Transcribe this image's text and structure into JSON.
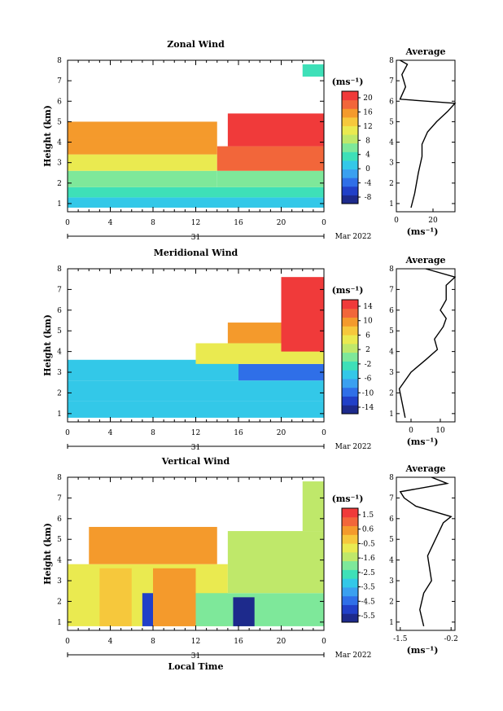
{
  "chart_data": [
    {
      "type": "heatmap",
      "title": "Zonal Wind",
      "ylabel": "Height (km)",
      "unit_label": "(ms⁻¹)",
      "x_ticks": [
        "0",
        "4",
        "8",
        "12",
        "16",
        "20",
        "0"
      ],
      "xlim": [
        0,
        24
      ],
      "y_ticks": [
        "1",
        "2",
        "3",
        "4",
        "5",
        "6",
        "7",
        "8"
      ],
      "ylim": [
        0.6,
        8
      ],
      "date_label": "31",
      "month_label": "Mar 2022",
      "colorbar_ticks": [
        "20",
        "16",
        "12",
        "8",
        "4",
        "0",
        "-4",
        "-8"
      ],
      "colorbar_range": [
        -10,
        22
      ],
      "regions": [
        {
          "x": [
            0,
            24
          ],
          "y": [
            0.8,
            1.3
          ],
          "v": 1
        },
        {
          "x": [
            0,
            24
          ],
          "y": [
            1.3,
            1.8
          ],
          "v": 3
        },
        {
          "x": [
            0,
            14
          ],
          "y": [
            1.8,
            2.6
          ],
          "v": 7
        },
        {
          "x": [
            14,
            24
          ],
          "y": [
            1.8,
            2.6
          ],
          "v": 5
        },
        {
          "x": [
            0,
            14
          ],
          "y": [
            2.6,
            3.4
          ],
          "v": 12
        },
        {
          "x": [
            14,
            24
          ],
          "y": [
            2.6,
            3.8
          ],
          "v": 19
        },
        {
          "x": [
            0,
            14
          ],
          "y": [
            3.4,
            4.2
          ],
          "v": 15
        },
        {
          "x": [
            0,
            14
          ],
          "y": [
            4.2,
            5.0
          ],
          "v": 17
        },
        {
          "x": [
            15,
            24
          ],
          "y": [
            3.8,
            5.4
          ],
          "v": 22
        },
        {
          "x": [
            22,
            24
          ],
          "y": [
            7.2,
            7.8
          ],
          "v": 4
        }
      ],
      "average": {
        "title": "Average",
        "xlabel": "(ms⁻¹)",
        "x_ticks": [
          "0",
          "20"
        ],
        "xlim": [
          0,
          32
        ],
        "profile": [
          [
            8,
            0.8
          ],
          [
            10,
            1.5
          ],
          [
            12,
            2.5
          ],
          [
            14,
            3.3
          ],
          [
            14,
            3.9
          ],
          [
            17,
            4.5
          ],
          [
            22,
            5.0
          ],
          [
            28,
            5.5
          ],
          [
            32,
            5.9
          ],
          [
            2,
            6.1
          ],
          [
            5,
            6.7
          ],
          [
            3,
            7.3
          ],
          [
            6,
            7.8
          ],
          [
            2,
            8.0
          ]
        ]
      }
    },
    {
      "type": "heatmap",
      "title": "Meridional Wind",
      "ylabel": "Height (km)",
      "unit_label": "(ms⁻¹)",
      "x_ticks": [
        "0",
        "4",
        "8",
        "12",
        "16",
        "20",
        "0"
      ],
      "xlim": [
        0,
        24
      ],
      "y_ticks": [
        "1",
        "2",
        "3",
        "4",
        "5",
        "6",
        "7",
        "8"
      ],
      "ylim": [
        0.6,
        8
      ],
      "date_label": "31",
      "month_label": "Mar 2022",
      "colorbar_ticks": [
        "14",
        "10",
        "6",
        "2",
        "-2",
        "-6",
        "-10",
        "-14"
      ],
      "colorbar_range": [
        -16,
        16
      ],
      "regions": [
        {
          "x": [
            0,
            24
          ],
          "y": [
            0.8,
            1.6
          ],
          "v": -4
        },
        {
          "x": [
            0,
            24
          ],
          "y": [
            1.6,
            2.6
          ],
          "v": -6
        },
        {
          "x": [
            0,
            16
          ],
          "y": [
            2.6,
            3.6
          ],
          "v": -4
        },
        {
          "x": [
            16,
            24
          ],
          "y": [
            2.6,
            3.4
          ],
          "v": -9
        },
        {
          "x": [
            12,
            24
          ],
          "y": [
            3.4,
            4.4
          ],
          "v": 5
        },
        {
          "x": [
            15,
            24
          ],
          "y": [
            4.4,
            5.4
          ],
          "v": 9
        },
        {
          "x": [
            20,
            24
          ],
          "y": [
            4.0,
            7.6
          ],
          "v": 15
        }
      ],
      "average": {
        "title": "Average",
        "xlabel": "(ms⁻¹)",
        "x_ticks": [
          "0",
          "10"
        ],
        "xlim": [
          -5,
          15
        ],
        "profile": [
          [
            -2,
            0.8
          ],
          [
            -3,
            1.5
          ],
          [
            -4,
            2.2
          ],
          [
            0,
            3.0
          ],
          [
            5,
            3.6
          ],
          [
            9,
            4.1
          ],
          [
            8,
            4.6
          ],
          [
            11,
            5.2
          ],
          [
            12,
            5.6
          ],
          [
            10,
            6.0
          ],
          [
            12,
            6.5
          ],
          [
            12,
            7.2
          ],
          [
            15,
            7.6
          ],
          [
            5,
            8.0
          ]
        ]
      }
    },
    {
      "type": "heatmap",
      "title": "Vertical Wind",
      "ylabel": "Height (km)",
      "xlabel": "Local Time",
      "unit_label": "(ms⁻¹)",
      "x_ticks": [
        "0",
        "4",
        "8",
        "12",
        "16",
        "20",
        "0"
      ],
      "xlim": [
        0,
        24
      ],
      "y_ticks": [
        "1",
        "2",
        "3",
        "4",
        "5",
        "6",
        "7",
        "8"
      ],
      "ylim": [
        0.6,
        8
      ],
      "date_label": "31",
      "month_label": "Mar 2022",
      "colorbar_ticks": [
        "1.5",
        "0.6",
        "-0.5",
        "-1.6",
        "-2.5",
        "-3.5",
        "-4.5",
        "-5.5"
      ],
      "colorbar_range": [
        -6,
        2
      ],
      "regions": [
        {
          "x": [
            0,
            15
          ],
          "y": [
            0.8,
            3.8
          ],
          "v": -0.5
        },
        {
          "x": [
            3,
            6
          ],
          "y": [
            0.8,
            3.6
          ],
          "v": 0
        },
        {
          "x": [
            7,
            8
          ],
          "y": [
            0.8,
            2.4
          ],
          "v": -5.0
        },
        {
          "x": [
            8,
            12
          ],
          "y": [
            0.8,
            3.6
          ],
          "v": 0.2
        },
        {
          "x": [
            12,
            24
          ],
          "y": [
            0.8,
            2.4
          ],
          "v": -1.8
        },
        {
          "x": [
            15,
            24
          ],
          "y": [
            2.4,
            5.4
          ],
          "v": -1.4
        },
        {
          "x": [
            15.5,
            17.5
          ],
          "y": [
            0.8,
            2.2
          ],
          "v": -5.5
        },
        {
          "x": [
            2,
            14
          ],
          "y": [
            3.8,
            5.6
          ],
          "v": 0.4
        },
        {
          "x": [
            22,
            24
          ],
          "y": [
            5.4,
            7.8
          ],
          "v": -1.2
        }
      ],
      "average": {
        "title": "Average",
        "xlabel": "(ms⁻¹)",
        "x_ticks": [
          "-1.5",
          "-0.2"
        ],
        "xlim": [
          -1.6,
          -0.1
        ],
        "profile": [
          [
            -0.9,
            0.8
          ],
          [
            -1.0,
            1.6
          ],
          [
            -0.9,
            2.4
          ],
          [
            -0.7,
            3.0
          ],
          [
            -0.8,
            4.2
          ],
          [
            -0.6,
            5.0
          ],
          [
            -0.4,
            5.8
          ],
          [
            -0.2,
            6.1
          ],
          [
            -1.1,
            6.6
          ],
          [
            -1.4,
            7.0
          ],
          [
            -1.5,
            7.3
          ],
          [
            -0.3,
            7.7
          ],
          [
            -0.7,
            8.0
          ]
        ]
      }
    }
  ]
}
